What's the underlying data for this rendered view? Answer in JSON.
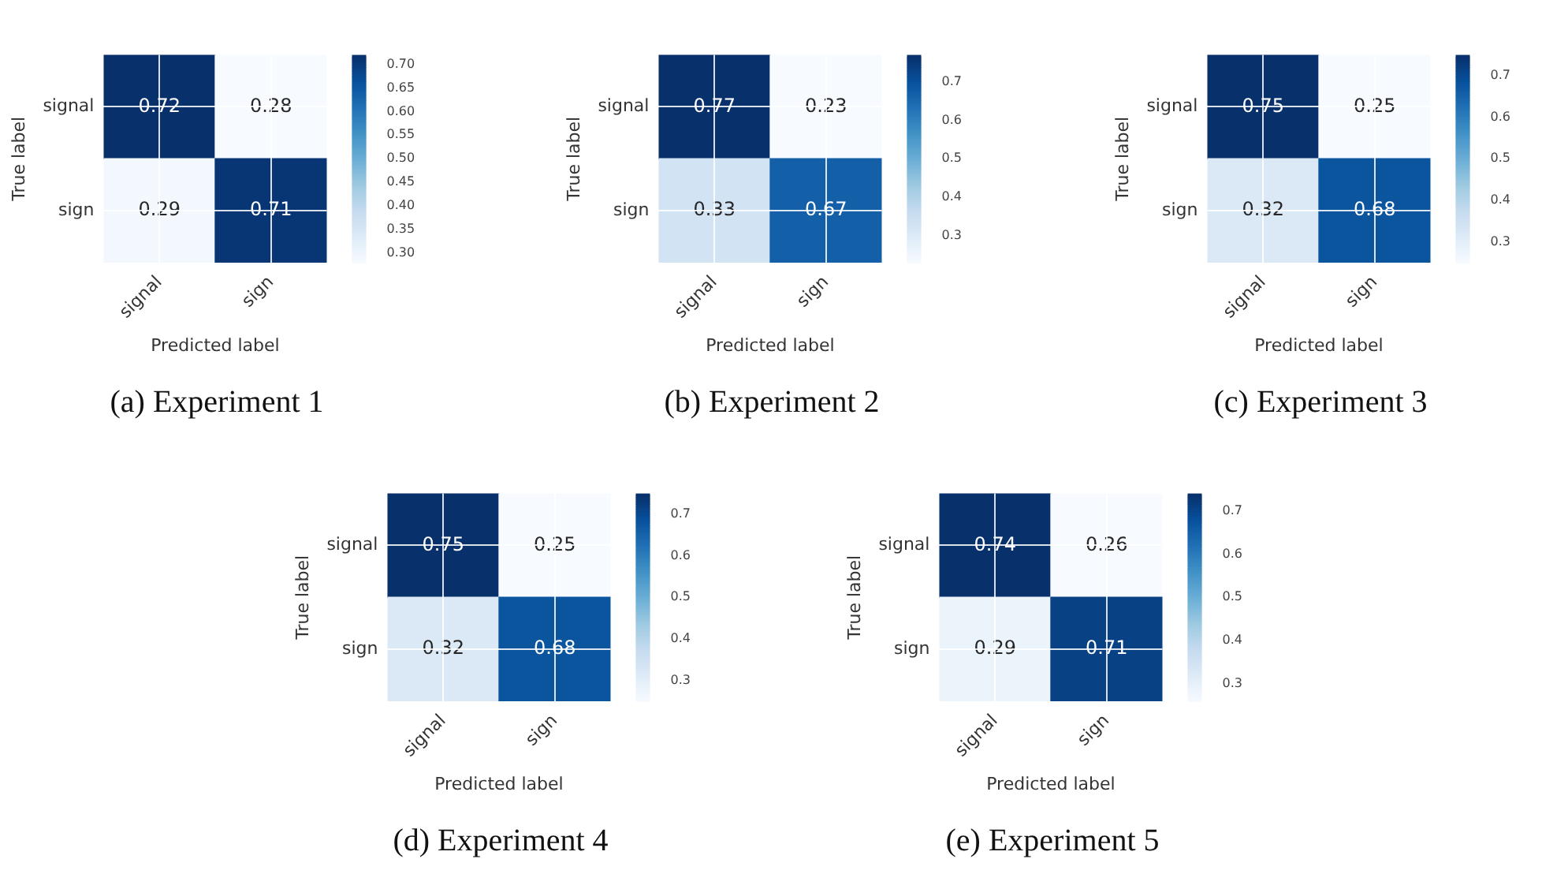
{
  "chart_data": [
    {
      "type": "heatmap",
      "title": "(a) Experiment 1",
      "xlabel": "Predicted label",
      "ylabel": "True label",
      "categories": [
        "signal",
        "sign"
      ],
      "y_categories": [
        "signal",
        "sign"
      ],
      "cells": [
        [
          0.72,
          0.28
        ],
        [
          0.29,
          0.71
        ]
      ],
      "clim": [
        0.28,
        0.72
      ],
      "cticks": [
        {
          "value": 0.3,
          "label": "0.30"
        },
        {
          "value": 0.35,
          "label": "0.35"
        },
        {
          "value": 0.4,
          "label": "0.40"
        },
        {
          "value": 0.45,
          "label": "0.45"
        },
        {
          "value": 0.5,
          "label": "0.50"
        },
        {
          "value": 0.55,
          "label": "0.55"
        },
        {
          "value": 0.6,
          "label": "0.60"
        },
        {
          "value": 0.65,
          "label": "0.65"
        },
        {
          "value": 0.7,
          "label": "0.70"
        }
      ],
      "data_labels": true,
      "grid": true
    },
    {
      "type": "heatmap",
      "title": "(b) Experiment 2",
      "xlabel": "Predicted label",
      "ylabel": "True label",
      "categories": [
        "signal",
        "sign"
      ],
      "y_categories": [
        "signal",
        "sign"
      ],
      "cells": [
        [
          0.77,
          0.23
        ],
        [
          0.33,
          0.67
        ]
      ],
      "clim": [
        0.23,
        0.77
      ],
      "cticks": [
        0.3,
        0.4,
        0.5,
        0.6,
        0.7
      ],
      "data_labels": true,
      "grid": true
    },
    {
      "type": "heatmap",
      "title": "(c) Experiment 3",
      "xlabel": "Predicted label",
      "ylabel": "True label",
      "categories": [
        "signal",
        "sign"
      ],
      "y_categories": [
        "signal",
        "sign"
      ],
      "cells": [
        [
          0.75,
          0.25
        ],
        [
          0.32,
          0.68
        ]
      ],
      "clim": [
        0.25,
        0.75
      ],
      "cticks": [
        0.3,
        0.4,
        0.5,
        0.6,
        0.7
      ],
      "data_labels": true,
      "grid": true
    },
    {
      "type": "heatmap",
      "title": "(d) Experiment 4",
      "xlabel": "Predicted label",
      "ylabel": "True label",
      "categories": [
        "signal",
        "sign"
      ],
      "y_categories": [
        "signal",
        "sign"
      ],
      "cells": [
        [
          0.75,
          0.25
        ],
        [
          0.32,
          0.68
        ]
      ],
      "clim": [
        0.25,
        0.75
      ],
      "cticks": [
        0.3,
        0.4,
        0.5,
        0.6,
        0.7
      ],
      "data_labels": true,
      "grid": true
    },
    {
      "type": "heatmap",
      "title": "(e) Experiment 5",
      "xlabel": "Predicted label",
      "ylabel": "True label",
      "categories": [
        "signal",
        "sign"
      ],
      "y_categories": [
        "signal",
        "sign"
      ],
      "cells": [
        [
          0.74,
          0.26
        ],
        [
          0.29,
          0.71
        ]
      ],
      "clim": [
        0.26,
        0.74
      ],
      "cticks": [
        0.3,
        0.4,
        0.5,
        0.6,
        0.7
      ],
      "data_labels": true,
      "grid": true
    }
  ]
}
